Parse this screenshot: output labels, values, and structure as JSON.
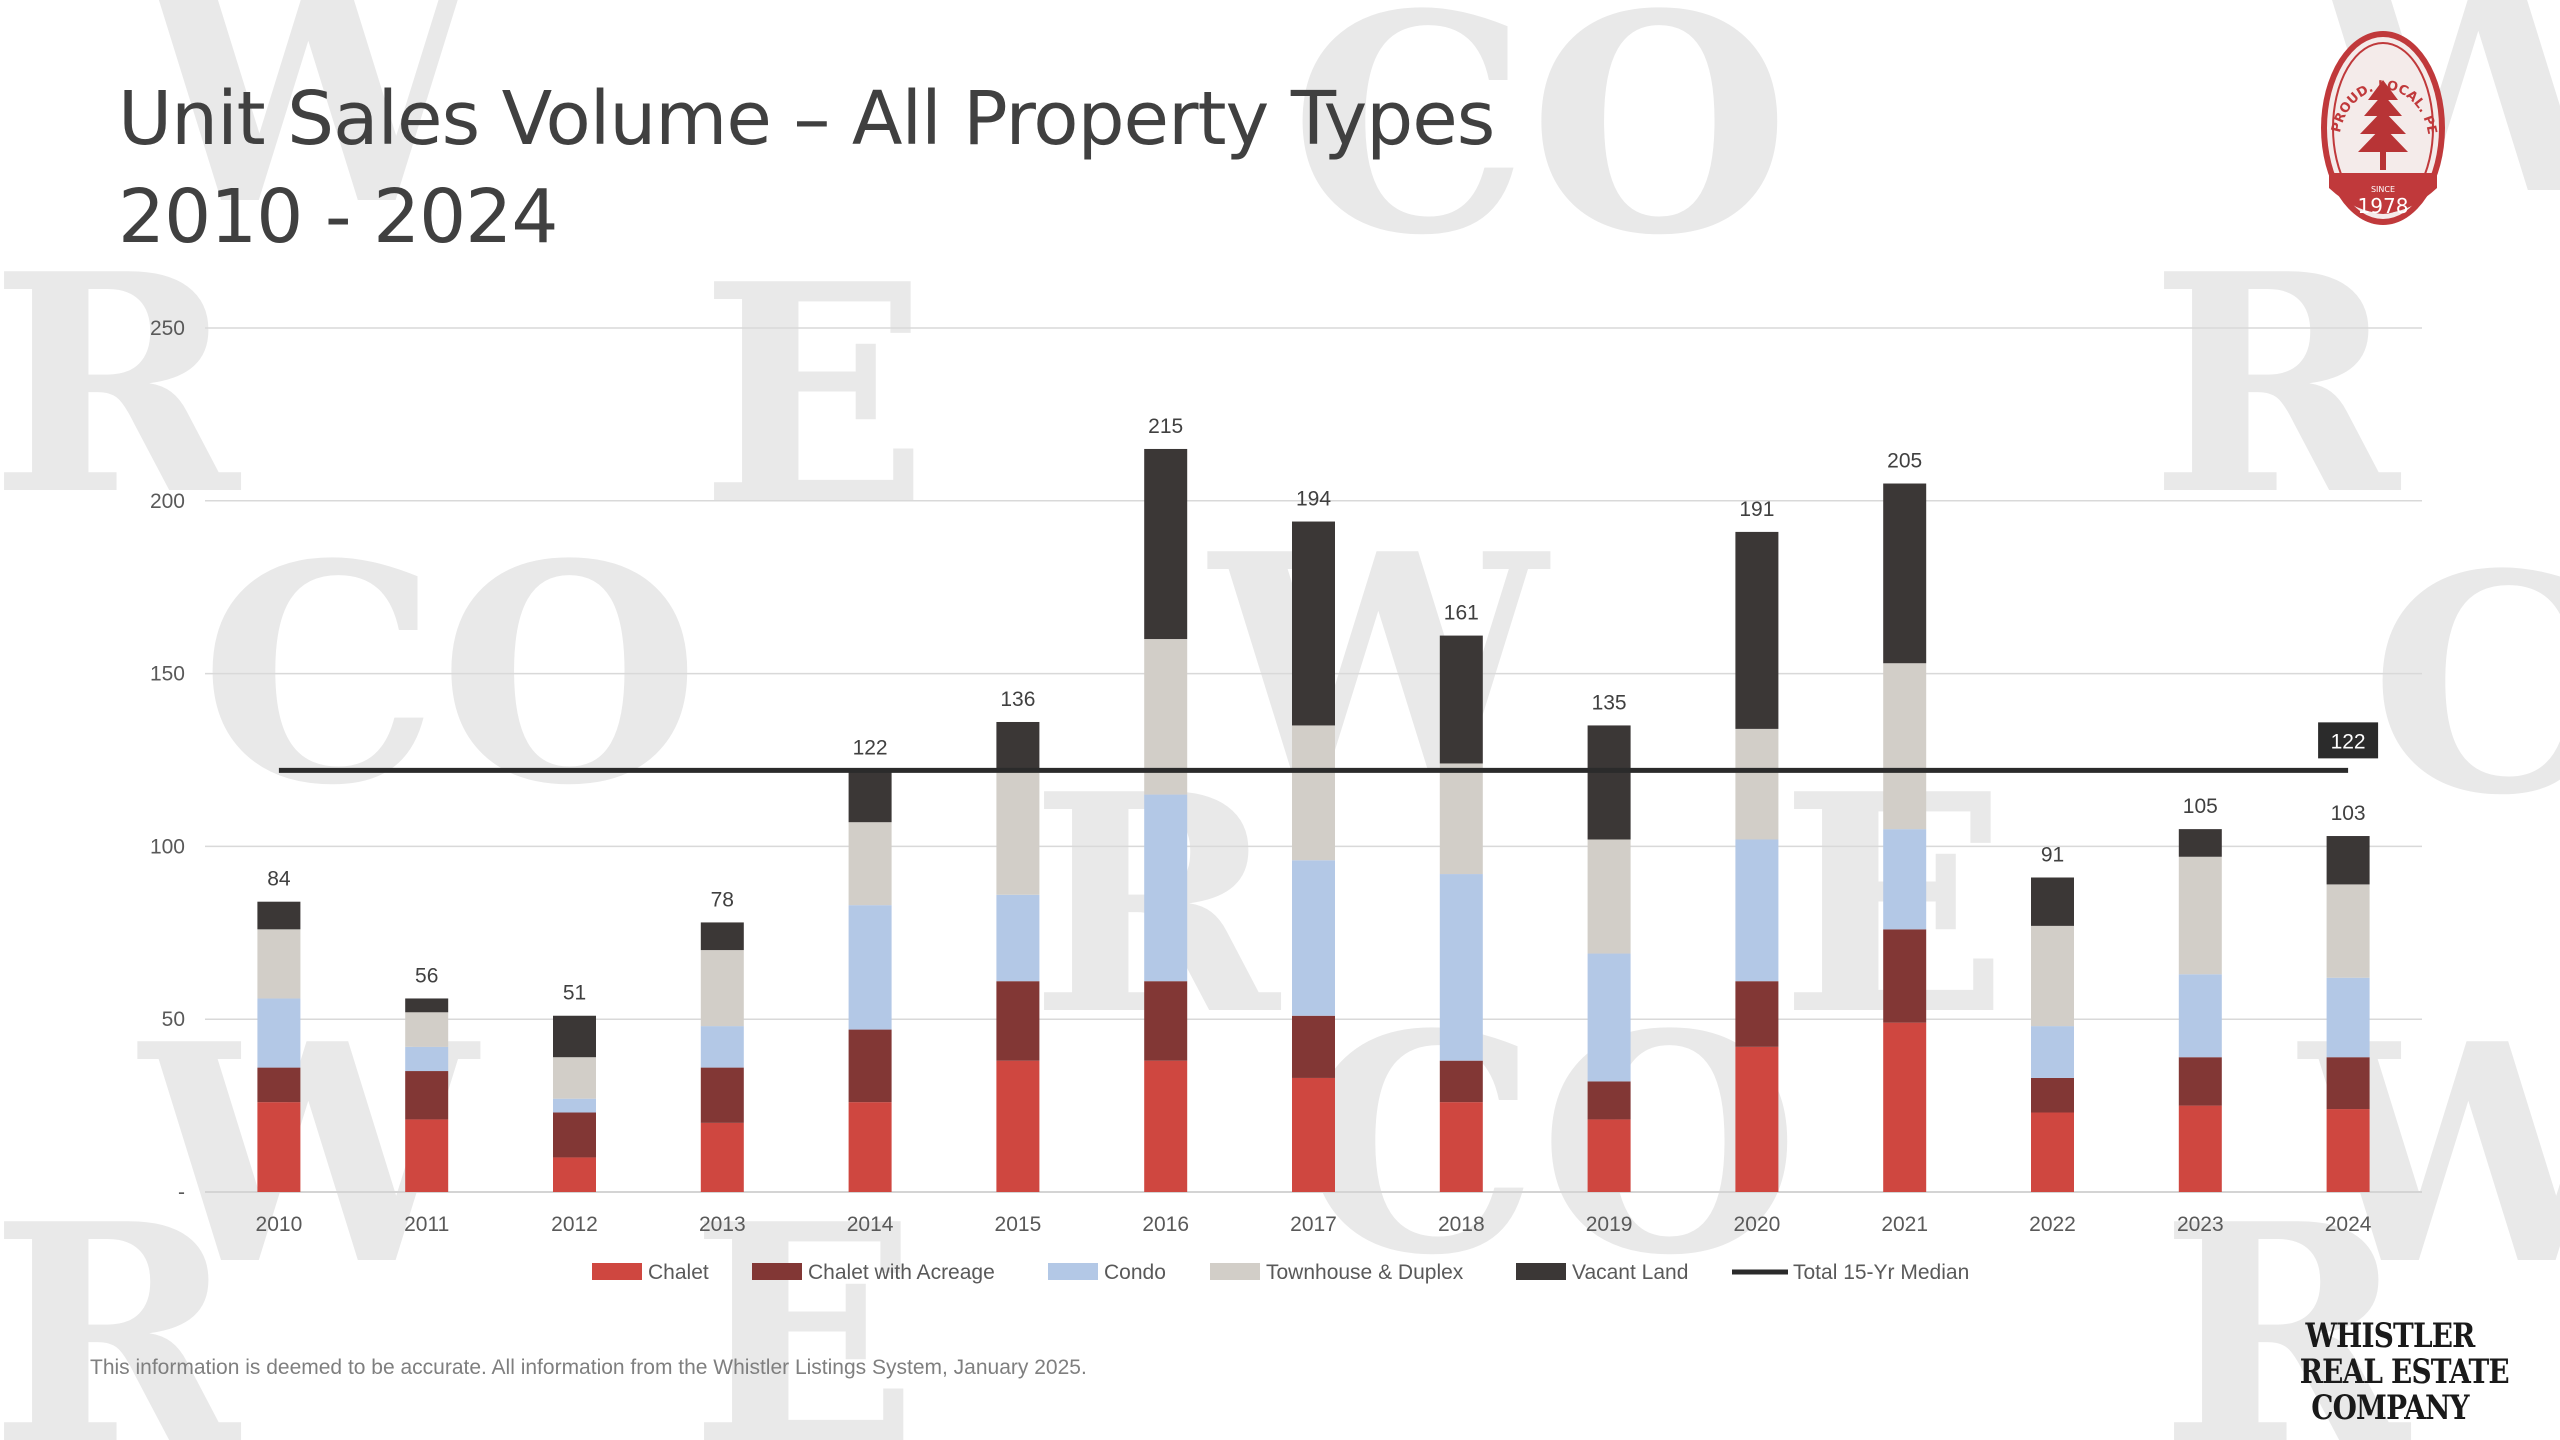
{
  "title_lines": [
    "Unit Sales Volume – All Property Types",
    "2010 - 2024"
  ],
  "footnote": "This information is deemed to be accurate. All information from the Whistler Listings System, January 2025.",
  "brand_logo_lines": [
    "WHISTLER",
    "REAL ESTATE",
    "COMPANY"
  ],
  "badge": {
    "text_arc": "PROUD. LOCAL. PEMBERTON",
    "since": "SINCE",
    "year": "1978",
    "icon": "tree-icon"
  },
  "watermark_letters": [
    "W",
    "CO",
    "W",
    "R",
    "E",
    "R",
    "CO",
    "W",
    "CO",
    "R",
    "E",
    "W",
    "CO",
    "W",
    "R",
    "E",
    "R"
  ],
  "colors": {
    "chalet": "#cf4740",
    "chalet_acreage": "#823735",
    "condo": "#b3c8e6",
    "townhouse": "#d2cec8",
    "vacant": "#3b3736",
    "median": "#2b2b2b",
    "badge": "#c0393b"
  },
  "chart_data": {
    "type": "bar",
    "stacked": true,
    "categories": [
      "2010",
      "2011",
      "2012",
      "2013",
      "2014",
      "2015",
      "2016",
      "2017",
      "2018",
      "2019",
      "2020",
      "2021",
      "2022",
      "2023",
      "2024"
    ],
    "series": [
      {
        "name": "Chalet",
        "color_key": "chalet",
        "values": [
          26,
          21,
          10,
          20,
          26,
          38,
          38,
          33,
          26,
          21,
          42,
          49,
          23,
          25,
          24
        ]
      },
      {
        "name": "Chalet with Acreage",
        "color_key": "chalet_acreage",
        "values": [
          10,
          14,
          13,
          16,
          21,
          23,
          23,
          18,
          12,
          11,
          19,
          27,
          10,
          14,
          15
        ]
      },
      {
        "name": "Condo",
        "color_key": "condo",
        "values": [
          20,
          7,
          4,
          12,
          36,
          25,
          54,
          45,
          54,
          37,
          41,
          29,
          15,
          24,
          23
        ]
      },
      {
        "name": "Townhouse & Duplex",
        "color_key": "townhouse",
        "values": [
          20,
          10,
          12,
          22,
          24,
          36,
          45,
          39,
          32,
          33,
          32,
          48,
          29,
          34,
          27
        ]
      },
      {
        "name": "Vacant Land",
        "color_key": "vacant",
        "values": [
          8,
          4,
          12,
          8,
          15,
          14,
          55,
          59,
          37,
          33,
          57,
          52,
          14,
          8,
          14
        ]
      }
    ],
    "totals": [
      84,
      56,
      51,
      78,
      122,
      136,
      215,
      194,
      161,
      135,
      191,
      205,
      91,
      105,
      103
    ],
    "median": {
      "name": "Total 15-Yr Median",
      "value": 122,
      "label": "122"
    },
    "yticks": [
      "-",
      "50",
      "100",
      "150",
      "200",
      "250"
    ],
    "ytick_values": [
      0,
      50,
      100,
      150,
      200,
      250
    ],
    "ylim": [
      0,
      250
    ],
    "grid": true,
    "legend_position": "bottom",
    "legend": [
      "Chalet",
      "Chalet with Acreage",
      "Condo",
      "Townhouse & Duplex",
      "Vacant Land",
      "Total 15-Yr Median"
    ]
  }
}
